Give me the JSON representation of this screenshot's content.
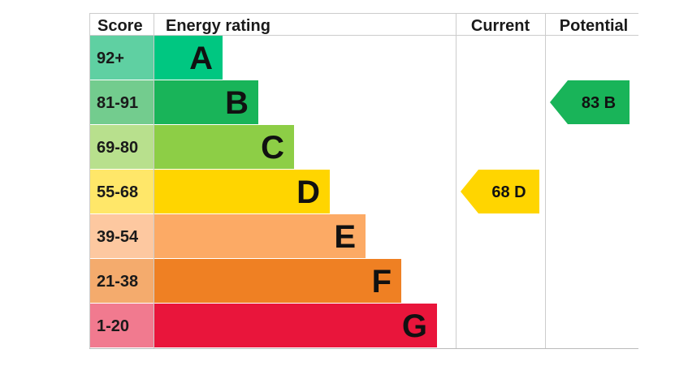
{
  "headers": {
    "score": "Score",
    "rating": "Energy rating",
    "current": "Current",
    "potential": "Potential"
  },
  "chart_data": {
    "type": "bar",
    "title": "",
    "bands": [
      {
        "score": "92+",
        "letter": "A",
        "color": "#00c781",
        "score_bg": "#5fd0a2"
      },
      {
        "score": "81-91",
        "letter": "B",
        "color": "#19b459",
        "score_bg": "#73cc8e"
      },
      {
        "score": "69-80",
        "letter": "C",
        "color": "#8dce46",
        "score_bg": "#b8e08d"
      },
      {
        "score": "55-68",
        "letter": "D",
        "color": "#ffd500",
        "score_bg": "#ffe769"
      },
      {
        "score": "39-54",
        "letter": "E",
        "color": "#fcaa65",
        "score_bg": "#fdc8a0"
      },
      {
        "score": "21-38",
        "letter": "F",
        "color": "#ef8023",
        "score_bg": "#f4ab6d"
      },
      {
        "score": "1-20",
        "letter": "G",
        "color": "#e9153b",
        "score_bg": "#f17a8f"
      }
    ],
    "current": {
      "value": 68,
      "letter": "D",
      "label": "68  D",
      "color": "#ffd500"
    },
    "potential": {
      "value": 83,
      "letter": "B",
      "label": "83  B",
      "color": "#19b459"
    }
  }
}
